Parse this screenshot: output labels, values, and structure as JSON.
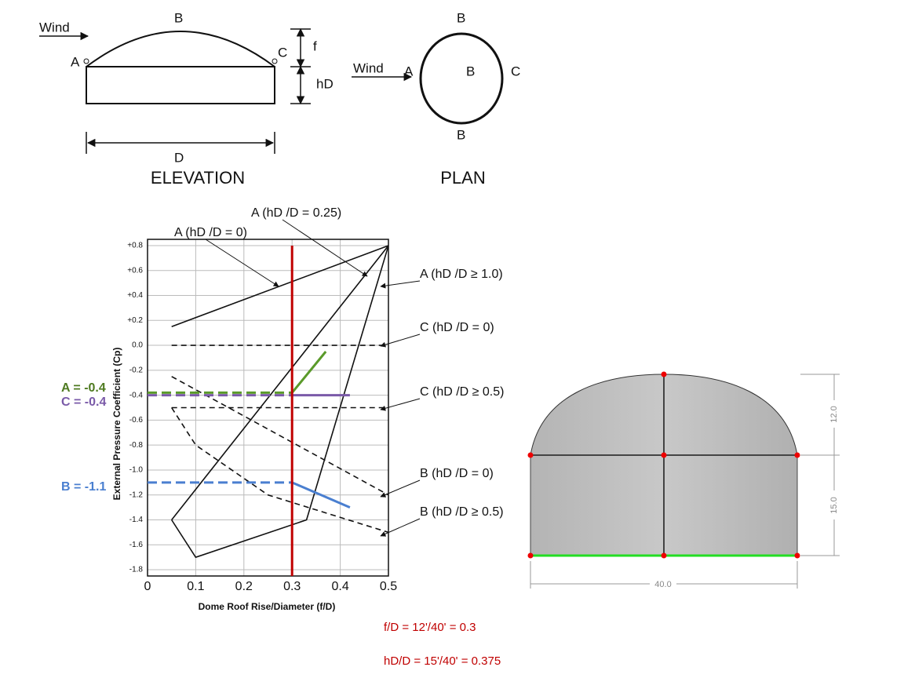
{
  "elevation": {
    "wind": "Wind",
    "point_a": "A",
    "point_b": "B",
    "point_c": "C",
    "rise": "f",
    "height": "hD",
    "diameter": "D",
    "title": "ELEVATION"
  },
  "plan": {
    "wind": "Wind",
    "point_a": "A",
    "point_b_top": "B",
    "point_b_center": "B",
    "point_b_bottom": "B",
    "point_c": "C",
    "title": "PLAN"
  },
  "chart_data": {
    "type": "line",
    "ylabel": "External Pressure Coefficient (Cp)",
    "xlabel": "Dome Roof Rise/Diameter (f/D)",
    "xlim": [
      0,
      0.5
    ],
    "ylim": [
      -1.85,
      0.85
    ],
    "grid": true,
    "xticks": [
      0,
      0.1,
      0.2,
      0.3,
      0.4,
      0.5
    ],
    "yticks": [
      {
        "value": 0.8,
        "label": "+0.8"
      },
      {
        "value": 0.6,
        "label": "+0.6"
      },
      {
        "value": 0.4,
        "label": "+0.4"
      },
      {
        "value": 0.2,
        "label": "+0.2"
      },
      {
        "value": 0,
        "label": "0.0"
      },
      -0.2,
      -0.4,
      -0.6,
      -0.8,
      {
        "value": -1,
        "label": "-1.0"
      },
      -1.2,
      -1.4,
      -1.6,
      -1.8
    ],
    "series": [
      {
        "name": "A (hD /D = 0)",
        "color": "#111111",
        "dash": false,
        "x": [
          0.05,
          0.5
        ],
        "values": [
          0.15,
          0.8
        ]
      },
      {
        "name": "A (hD /D = 0.25)",
        "color": "#111111",
        "dash": false,
        "x": [
          0.05,
          0.5
        ],
        "values": [
          -1.4,
          0.8
        ]
      },
      {
        "name": "A (hD /D ≥ 1.0)",
        "color": "#111111",
        "dash": false,
        "x": [
          0.05,
          0.1,
          0.33,
          0.5
        ],
        "values": [
          -1.4,
          -1.7,
          -1.4,
          0.8
        ]
      },
      {
        "name": "C (hD /D = 0)",
        "color": "#111111",
        "dash": true,
        "x": [
          0.05,
          0.5
        ],
        "values": [
          0,
          0
        ]
      },
      {
        "name": "C (hD /D ≥ 0.5)",
        "color": "#111111",
        "dash": true,
        "x": [
          0.05,
          0.5
        ],
        "values": [
          -0.5,
          -0.5
        ]
      },
      {
        "name": "B (hD /D = 0)",
        "color": "#111111",
        "dash": true,
        "x": [
          0.05,
          0.5
        ],
        "values": [
          -0.25,
          -1.2
        ]
      },
      {
        "name": "B (hD /D ≥ 0.5)",
        "color": "#111111",
        "dash": true,
        "x": [
          0.05,
          0.1,
          0.25,
          0.5
        ],
        "values": [
          -0.5,
          -0.8,
          -1.2,
          -1.5
        ]
      },
      {
        "color": "#7a5aa8",
        "dash": true,
        "x": [
          0,
          0.3
        ],
        "values": [
          -0.4,
          -0.4
        ]
      },
      {
        "color": "#7a5aa8",
        "dash": false,
        "x": [
          0.3,
          0.42
        ],
        "values": [
          -0.4,
          -0.4
        ]
      },
      {
        "color": "#5a9a2a",
        "dash": true,
        "x": [
          0,
          0.3
        ],
        "values": [
          -0.38,
          -0.38
        ]
      },
      {
        "color": "#5a9a2a",
        "dash": false,
        "x": [
          0.3,
          0.37
        ],
        "values": [
          -0.38,
          -0.05
        ]
      },
      {
        "color": "#4a7fd0",
        "dash": true,
        "x": [
          0,
          0.3
        ],
        "values": [
          -1.1,
          -1.1
        ]
      },
      {
        "color": "#4a7fd0",
        "dash": false,
        "x": [
          0.3,
          0.42
        ],
        "values": [
          -1.1,
          -1.3
        ]
      }
    ],
    "marker": {
      "x": 0.3,
      "color": "#c00000"
    },
    "annotations": [
      {
        "text": "A = -0.4",
        "color": "#4e7a20"
      },
      {
        "text": "C = -0.4",
        "color": "#7a5aa8"
      },
      {
        "text": "B = -1.1",
        "color": "#4a7fd0"
      }
    ]
  },
  "model": {
    "rise": "12.0",
    "height": "15.0",
    "width": "40.0"
  },
  "formulas": [
    "f/D = 12'/40' = 0.3",
    "hD/D = 15'/40' = 0.375"
  ]
}
